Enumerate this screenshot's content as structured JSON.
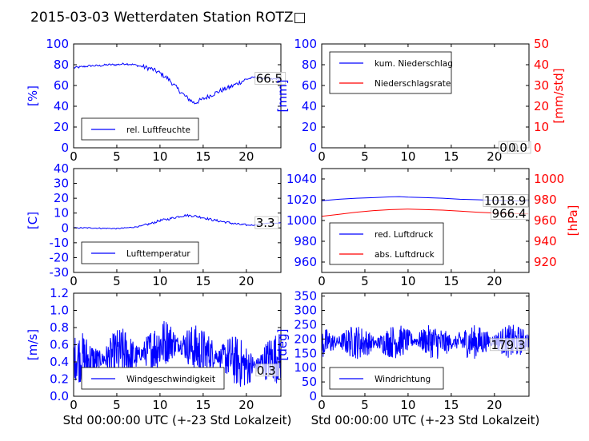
{
  "title": "2015-03-03 Wetterdaten Station ROTZ□",
  "colors": {
    "primary": "#0000ff",
    "secondary": "#ff0000",
    "axis": "#000000"
  },
  "chart_data": [
    {
      "id": "humidity",
      "type": "line",
      "ylabel": "[%]",
      "xlabel": "",
      "xlim": [
        0,
        24
      ],
      "xticks": [
        0,
        5,
        10,
        15,
        20
      ],
      "ylim": [
        0,
        100
      ],
      "yticks": [
        0,
        20,
        40,
        60,
        80,
        100
      ],
      "legend_position": "lower-left",
      "series": [
        {
          "name": "rel. Luftfeuchte",
          "color": "#0000ff",
          "x": [
            0,
            1,
            2,
            3,
            4,
            5,
            6,
            7,
            8,
            9,
            10,
            11,
            12,
            13,
            14,
            15,
            16,
            17,
            18,
            19,
            20,
            21,
            22,
            23,
            24
          ],
          "y": [
            77,
            78,
            79,
            79,
            80,
            80,
            81,
            80,
            78,
            76,
            72,
            66,
            57,
            49,
            43,
            47,
            51,
            55,
            58,
            62,
            66,
            68,
            67,
            66,
            67
          ]
        }
      ],
      "annotation": {
        "text": "66.5",
        "x": 21.1,
        "y": 66.5
      }
    },
    {
      "id": "precip",
      "type": "line",
      "ylabel": "[mm]",
      "ylabel_right": "[mm/std]",
      "xlabel": "",
      "xlim": [
        0,
        24
      ],
      "xticks": [
        0,
        5,
        10,
        15,
        20
      ],
      "ylim": [
        0,
        100
      ],
      "yticks": [
        0,
        20,
        40,
        60,
        80,
        100
      ],
      "ylim_right": [
        0,
        50
      ],
      "yticks_right": [
        0,
        10,
        20,
        30,
        40,
        50
      ],
      "legend_position": "upper-left",
      "series": [
        {
          "name": "kum. Niederschlag",
          "color": "#0000ff",
          "x": [
            0,
            24
          ],
          "y": [
            0,
            0
          ]
        },
        {
          "name": "Niederschlagsrate",
          "color": "#ff0000",
          "x": [
            0,
            24
          ],
          "y": [
            0,
            0
          ],
          "axis": "right"
        }
      ],
      "annotations": [
        {
          "text": "0.0",
          "x": 20.6,
          "y": 0
        },
        {
          "text": "0.0",
          "x": 21.6,
          "y": 0
        }
      ]
    },
    {
      "id": "temperature",
      "type": "line",
      "ylabel": "[C]",
      "xlabel": "",
      "xlim": [
        0,
        24
      ],
      "xticks": [
        0,
        5,
        10,
        15,
        20
      ],
      "ylim": [
        -30,
        40
      ],
      "yticks": [
        -30,
        -20,
        -10,
        0,
        10,
        20,
        30,
        40
      ],
      "legend_position": "lower-left",
      "series": [
        {
          "name": "Lufttemperatur",
          "color": "#0000ff",
          "x": [
            0,
            1,
            2,
            3,
            4,
            5,
            6,
            7,
            8,
            9,
            10,
            11,
            12,
            13,
            14,
            15,
            16,
            17,
            18,
            19,
            20,
            21,
            22,
            23,
            24
          ],
          "y": [
            0,
            0,
            0,
            -0.2,
            -0.3,
            -0.5,
            0,
            0.5,
            1.5,
            3,
            5,
            6,
            7.5,
            8.5,
            8,
            7,
            5.5,
            4.5,
            3.5,
            2.5,
            1.8,
            2,
            3,
            3.2,
            3.3
          ]
        }
      ],
      "annotation": {
        "text": "3.3",
        "x": 21.1,
        "y": 3.3
      }
    },
    {
      "id": "pressure",
      "type": "line",
      "ylabel": "",
      "ylabel_right": "[hPa]",
      "xlabel": "",
      "xlim": [
        0,
        24
      ],
      "xticks": [
        0,
        5,
        10,
        15,
        20
      ],
      "ylim": [
        950,
        1050
      ],
      "yticks": [
        960,
        980,
        1000,
        1020,
        1040
      ],
      "ylim_right": [
        910,
        1010
      ],
      "yticks_right": [
        920,
        940,
        960,
        980,
        1000
      ],
      "legend_position": "lower-left",
      "series": [
        {
          "name": "red. Luftdruck",
          "color": "#0000ff",
          "x": [
            0,
            2,
            4,
            6,
            8,
            9,
            10,
            12,
            14,
            16,
            18,
            20,
            22,
            24
          ],
          "y": [
            1019,
            1020.5,
            1021.5,
            1022,
            1022.8,
            1023,
            1022.5,
            1022,
            1021.5,
            1020.5,
            1020,
            1019.5,
            1019,
            1018.9
          ]
        },
        {
          "name": "abs. Luftdruck",
          "color": "#ff0000",
          "axis": "right",
          "x": [
            0,
            2,
            4,
            6,
            8,
            10,
            12,
            14,
            16,
            18,
            20,
            22,
            24
          ],
          "y": [
            964,
            966,
            968,
            969.5,
            970.5,
            971,
            970.5,
            970,
            969,
            968,
            967.2,
            966.8,
            966.4
          ]
        }
      ],
      "annotations": [
        {
          "text": "1018.9",
          "x": 18.8,
          "y": 1018.9
        },
        {
          "text": "966.4",
          "x": 19.7,
          "y": 966.4,
          "axis": "right"
        }
      ]
    },
    {
      "id": "windspeed",
      "type": "line",
      "ylabel": "[m/s]",
      "xlabel": "Std 00:00:00 UTC (+-23 Std Lokalzeit)",
      "xlim": [
        0,
        24
      ],
      "xticks": [
        0,
        5,
        10,
        15,
        20
      ],
      "ylim": [
        0,
        1.2
      ],
      "yticks": [
        0.0,
        0.2,
        0.4,
        0.6,
        0.8,
        1.0,
        1.2
      ],
      "legend_position": "lower-center",
      "series": [
        {
          "name": "Windgeschwindigkeit",
          "color": "#0000ff",
          "x": [
            0,
            1,
            2,
            3,
            4,
            5,
            6,
            7,
            8,
            9,
            10,
            11,
            12,
            13,
            14,
            15,
            16,
            17,
            18,
            19,
            20,
            21,
            22,
            23,
            24
          ],
          "y": [
            0.45,
            0.45,
            0.4,
            0.42,
            0.45,
            0.5,
            0.5,
            0.45,
            0.5,
            0.55,
            0.6,
            0.65,
            0.6,
            0.6,
            0.55,
            0.5,
            0.5,
            0.45,
            0.45,
            0.4,
            0.35,
            0.35,
            0.4,
            0.45,
            0.45
          ],
          "noise": 0.25,
          "samples": 580
        }
      ],
      "annotation": {
        "text": "0.3",
        "x": 21.2,
        "y": 0.3
      }
    },
    {
      "id": "winddir",
      "type": "line",
      "ylabel": "[deg]",
      "xlabel": "Std 00:00:00 UTC (+-23 Std Lokalzeit)",
      "xlim": [
        0,
        24
      ],
      "xticks": [
        0,
        5,
        10,
        15,
        20
      ],
      "ylim": [
        0,
        360
      ],
      "yticks": [
        0,
        50,
        100,
        150,
        200,
        250,
        300,
        350
      ],
      "legend_position": "lower-left",
      "series": [
        {
          "name": "Windrichtung",
          "color": "#0000ff",
          "x": [
            0,
            2,
            4,
            6,
            8,
            10,
            12,
            14,
            16,
            18,
            20,
            22,
            24
          ],
          "y": [
            185,
            190,
            190,
            185,
            190,
            195,
            195,
            185,
            190,
            190,
            195,
            190,
            195
          ],
          "noise": 50,
          "samples": 580
        }
      ],
      "annotation": {
        "text": "179.3",
        "x": 19.6,
        "y": 179.3
      }
    }
  ]
}
